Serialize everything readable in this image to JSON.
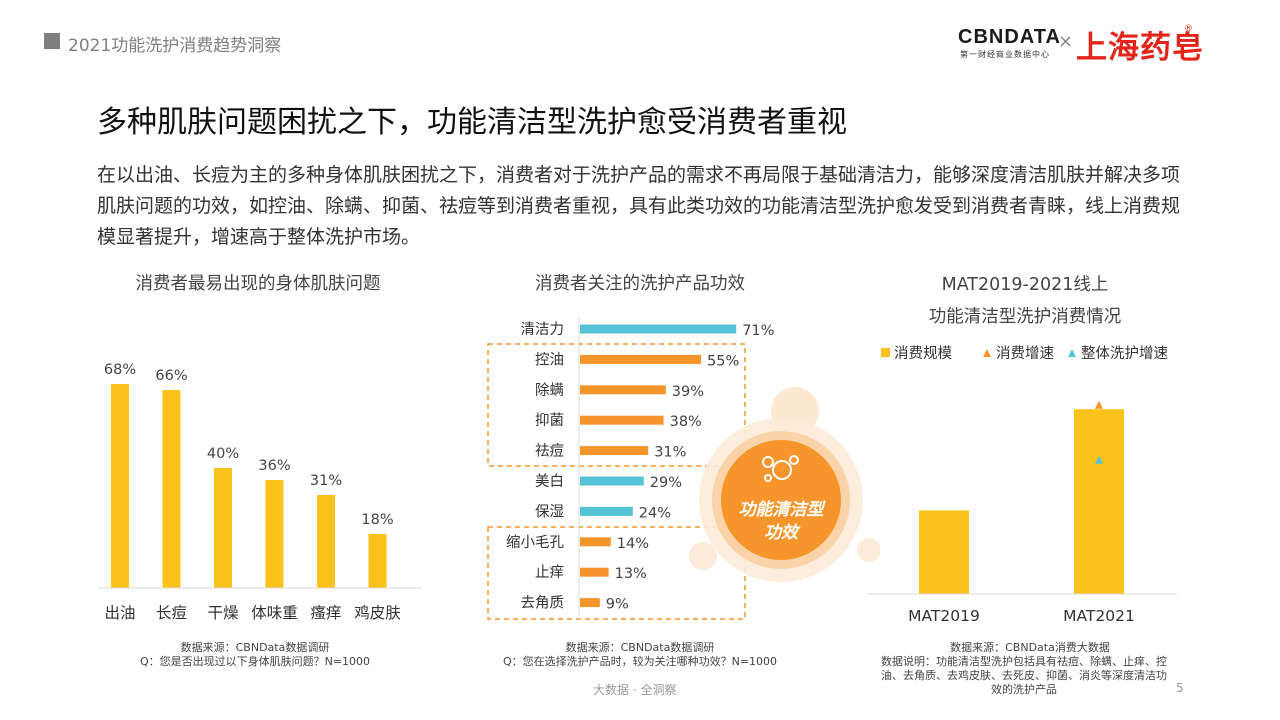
{
  "header": {
    "report_title": "2021功能洗护消费趋势洞察"
  },
  "logos": {
    "cbn": "CBNDATA",
    "cbn_sub": "第一财经商业数据中心",
    "times": "×",
    "brand": "上海药皂",
    "registered": "®"
  },
  "page": {
    "title": "多种肌肤问题困扰之下，功能清洁型洗护愈受消费者重视",
    "description": "在以出油、长痘为主的多种身体肌肤困扰之下，消费者对于洗护产品的需求不再局限于基础清洁力，能够深度清洁肌肤并解决多项肌肤问题的功效，如控油、除螨、抑菌、祛痘等到消费者重视，具有此类功效的功能清洁型洗护愈发受到消费者青睐，线上消费规模显著提升，增速高于整体洗护市场。"
  },
  "chart_data": [
    {
      "type": "bar",
      "title": "消费者最易出现的身体肌肤问题",
      "categories": [
        "出油",
        "长痘",
        "干燥",
        "体味重",
        "瘙痒",
        "鸡皮肤"
      ],
      "values": [
        68,
        66,
        40,
        36,
        31,
        18
      ],
      "labels": [
        "68%",
        "66%",
        "40%",
        "36%",
        "31%",
        "18%"
      ],
      "unit": "%",
      "color": "#fbc21b",
      "source": "数据来源：CBNData数据调研",
      "note": "Q：您是否出现过以下身体肌肤问题？N=1000"
    },
    {
      "type": "bar",
      "orientation": "horizontal",
      "title": "消费者关注的洗护产品功效",
      "categories": [
        "清洁力",
        "控油",
        "除螨",
        "抑菌",
        "祛痘",
        "美白",
        "保湿",
        "缩小毛孔",
        "止痒",
        "去角质"
      ],
      "values": [
        71,
        55,
        39,
        38,
        31,
        29,
        24,
        14,
        13,
        9
      ],
      "labels": [
        "71%",
        "55%",
        "39%",
        "38%",
        "31%",
        "29%",
        "24%",
        "14%",
        "13%",
        "9%"
      ],
      "highlight": [
        false,
        true,
        true,
        true,
        true,
        false,
        false,
        true,
        true,
        true
      ],
      "colors": {
        "normal": "#55c3d6",
        "highlight": "#f7952d"
      },
      "callout": "功能清洁型功效",
      "source": "数据来源：CBNData数据调研",
      "note": "Q：您在选择洗护产品时，较为关注哪种功效？N=1000"
    },
    {
      "type": "bar",
      "title_line1": "MAT2019-2021线上",
      "title_line2": "功能清洁型洗护消费情况",
      "categories": [
        "MAT2019",
        "MAT2021"
      ],
      "series": [
        {
          "name": "消费规模",
          "type": "bar",
          "values": [
            0.38,
            0.84
          ],
          "color": "#fbc21b"
        },
        {
          "name": "消费增速",
          "type": "marker",
          "values": [
            null,
            0.86
          ],
          "color": "#f7952d"
        },
        {
          "name": "整体洗护增速",
          "type": "marker",
          "values": [
            null,
            0.61
          ],
          "color": "#55c3d6"
        }
      ],
      "source": "数据来源：CBNData消费大数据",
      "note_lines": [
        "数据说明：功能清洁型洗护包括具有祛痘、除螨、止痒、控",
        "油、去角质、去鸡皮肤、去死皮、抑菌、消炎等深度清洁功",
        "效的洗护产品"
      ]
    }
  ],
  "footer": {
    "text": "大数据 · 全洞察",
    "page_number": "5"
  }
}
